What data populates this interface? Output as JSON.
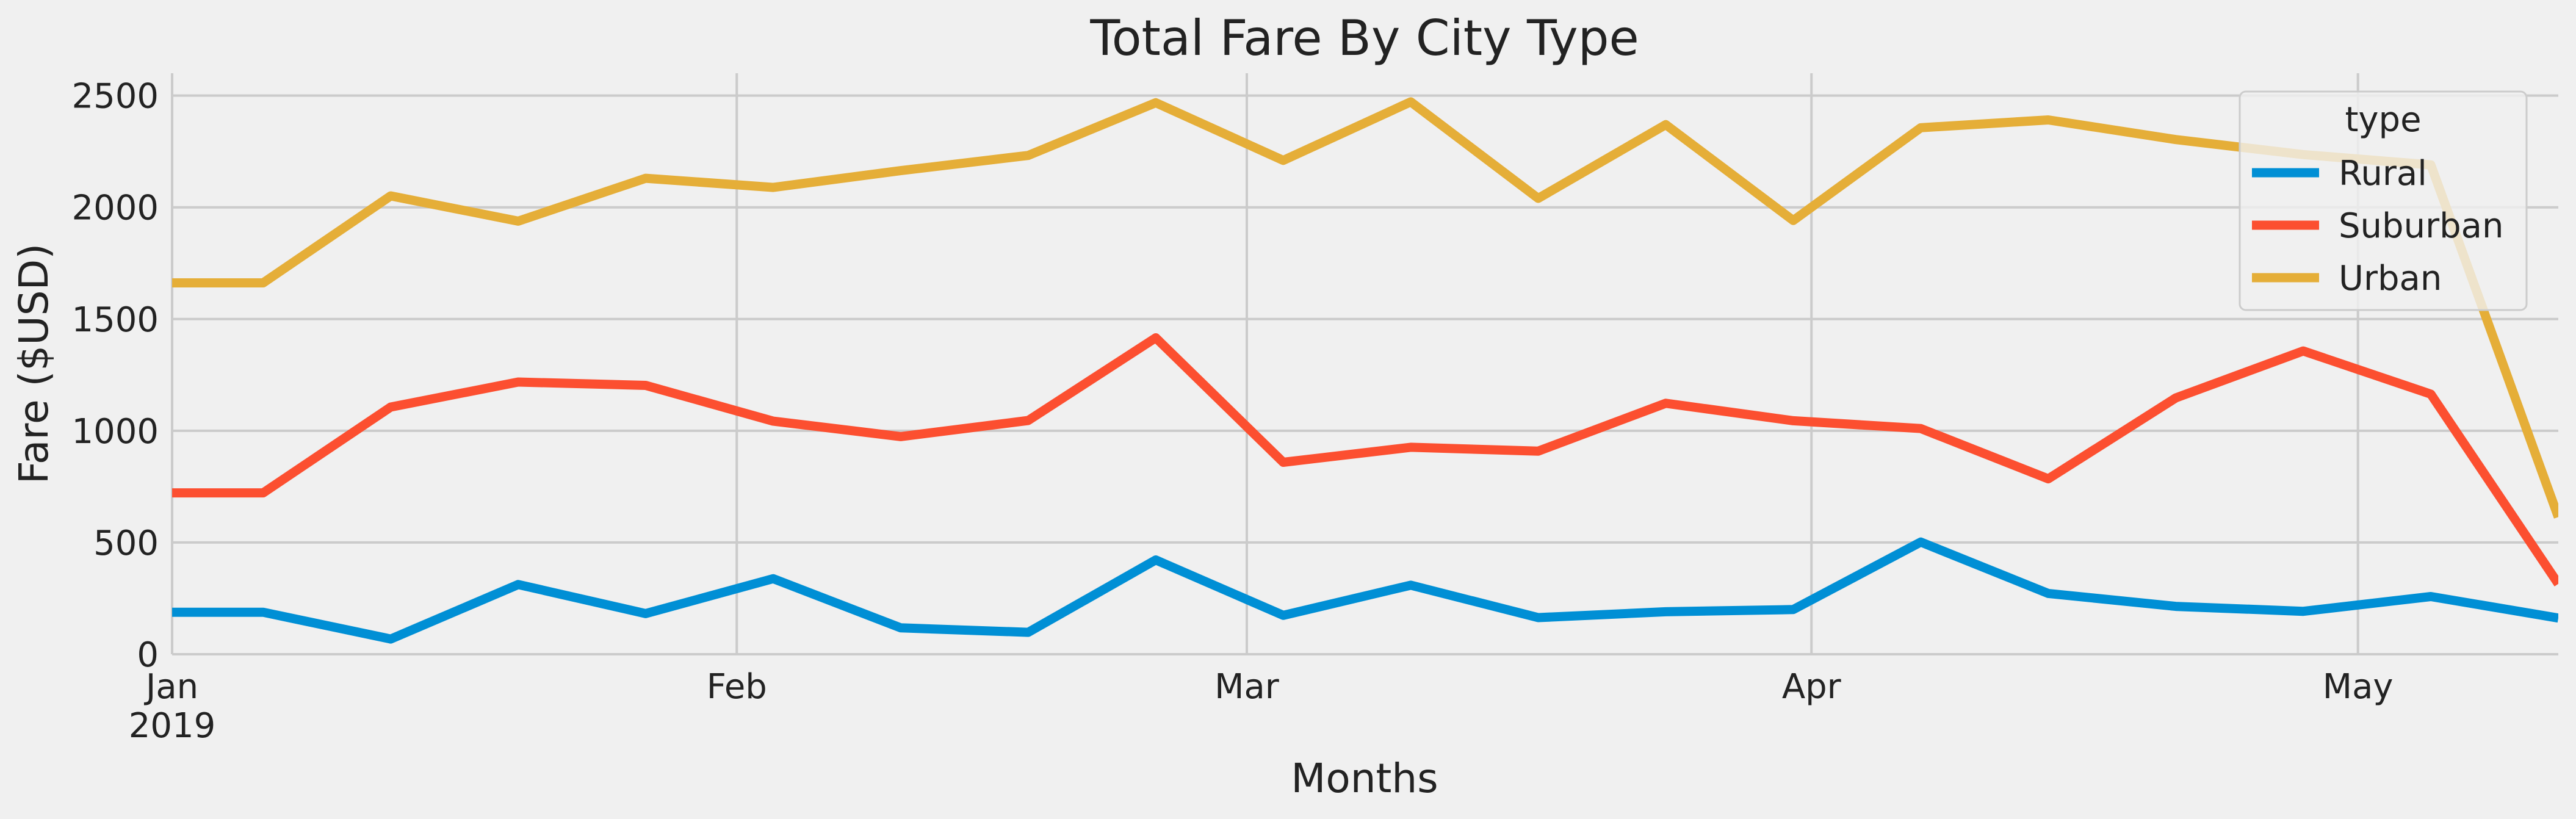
{
  "chart_data": {
    "type": "line",
    "title": "Total Fare By City Type",
    "xlabel": "Months",
    "ylabel": "Fare ($USD)",
    "ylim": [
      0,
      2600
    ],
    "grid": true,
    "legend_title": "type",
    "legend_position": "top-right",
    "x": [
      "2019-01-06",
      "2019-01-13",
      "2019-01-20",
      "2019-01-27",
      "2019-02-03",
      "2019-02-10",
      "2019-02-17",
      "2019-02-24",
      "2019-03-03",
      "2019-03-10",
      "2019-03-17",
      "2019-03-24",
      "2019-03-31",
      "2019-04-07",
      "2019-04-14",
      "2019-04-21",
      "2019-04-28",
      "2019-05-05",
      "2019-05-12"
    ],
    "x_ticks": [
      {
        "date": "2019-01-01",
        "label": "Jan",
        "sublabel": "2019"
      },
      {
        "date": "2019-02-01",
        "label": "Feb",
        "sublabel": ""
      },
      {
        "date": "2019-03-01",
        "label": "Mar",
        "sublabel": ""
      },
      {
        "date": "2019-04-01",
        "label": "Apr",
        "sublabel": ""
      },
      {
        "date": "2019-05-01",
        "label": "May",
        "sublabel": ""
      }
    ],
    "y_ticks": [
      0,
      500,
      1000,
      1500,
      2000,
      2500
    ],
    "series": [
      {
        "name": "Rural",
        "color": "#008fd5",
        "values": [
          188,
          68,
          312,
          182,
          338,
          118,
          98,
          422,
          174,
          309,
          164,
          190,
          200,
          502,
          272,
          214,
          192,
          258,
          162
        ]
      },
      {
        "name": "Suburban",
        "color": "#fc4f30",
        "values": [
          722,
          1106,
          1218,
          1203,
          1043,
          974,
          1046,
          1416,
          859,
          926,
          909,
          1123,
          1045,
          1010,
          785,
          1147,
          1357,
          1164,
          315
        ]
      },
      {
        "name": "Urban",
        "color": "#e5ae38",
        "values": [
          1662,
          2051,
          1938,
          2130,
          2089,
          2164,
          2232,
          2468,
          2210,
          2472,
          2040,
          2370,
          1941,
          2356,
          2391,
          2303,
          2236,
          2190,
          614
        ]
      }
    ]
  }
}
